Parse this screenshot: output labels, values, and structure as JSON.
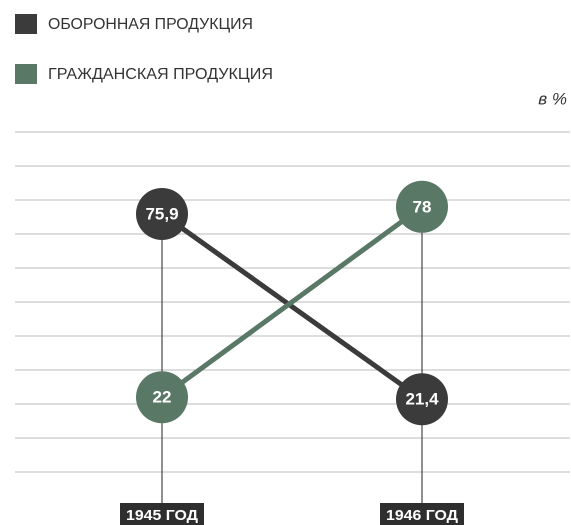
{
  "chart_data": {
    "type": "line",
    "unit_label": "в %",
    "categories": [
      "1945 ГОД",
      "1946 ГОД"
    ],
    "series": [
      {
        "name": "ОБОРОННАЯ ПРОДУКЦИЯ",
        "color": "#3b3b3b",
        "values": [
          75.9,
          21.4
        ],
        "value_labels": [
          "75,9",
          "21,4"
        ]
      },
      {
        "name": "ГРАЖДАНСКАЯ ПРОДУКЦИЯ",
        "color": "#5a7866",
        "values": [
          22,
          78
        ],
        "value_labels": [
          "22",
          "78"
        ]
      }
    ],
    "ylim": [
      0,
      100
    ],
    "yticks": [
      0,
      10,
      20,
      30,
      40,
      50,
      60,
      70,
      80,
      90,
      100
    ],
    "grid": true
  }
}
